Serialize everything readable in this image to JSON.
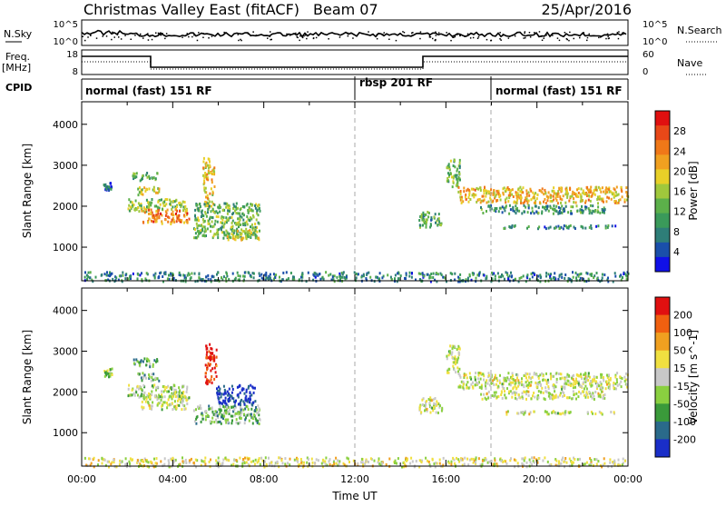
{
  "header": {
    "title": "Christmas Valley East (fitACF)",
    "beam": "Beam 07",
    "date": "25/Apr/2016"
  },
  "top_panels": {
    "nsky": {
      "label_left": "N.Sky",
      "ticks_left": [
        "10^5",
        "10^0"
      ],
      "label_right": "N.Search",
      "ticks_right": [
        "10^5",
        "10^0"
      ]
    },
    "freq": {
      "label_left": "Freq.",
      "unit_left": "[MHz]",
      "ticks_left": [
        "18",
        "8"
      ],
      "label_right": "Nave",
      "ticks_right": [
        "60",
        "0"
      ]
    },
    "cpid": {
      "label": "CPID",
      "segments": [
        {
          "label": "normal (fast) 151 RF",
          "start_hour": 0,
          "end_hour": 12
        },
        {
          "label": "rbsp 201 RF",
          "start_hour": 12,
          "end_hour": 18
        },
        {
          "label": "normal (fast) 151 RF",
          "start_hour": 18,
          "end_hour": 24
        }
      ]
    }
  },
  "chart_data": [
    {
      "type": "heatmap",
      "name": "power",
      "ylabel": "Slant Range [km]",
      "yticks": [
        "1000",
        "2000",
        "3000",
        "4000"
      ],
      "ylim": [
        180,
        4550
      ],
      "xlim": [
        0,
        24
      ],
      "colorbar": {
        "label": "Power [dB]",
        "ticks": [
          "4",
          "8",
          "12",
          "16",
          "20",
          "24",
          "28"
        ],
        "colors": [
          "#1010e8",
          "#1a4faa",
          "#2e7e78",
          "#3a9a5a",
          "#5cb04a",
          "#a0c83c",
          "#e8d028",
          "#f0a020",
          "#f07818",
          "#e84818",
          "#e01010"
        ]
      },
      "regions": [
        {
          "t0": 0.9,
          "t1": 1.3,
          "r0": 2400,
          "r1": 2600,
          "level": 0.2
        },
        {
          "t0": 2.2,
          "t1": 3.3,
          "r0": 2650,
          "r1": 2850,
          "level": 0.35
        },
        {
          "t0": 2.4,
          "t1": 3.4,
          "r0": 2300,
          "r1": 2500,
          "level": 0.55
        },
        {
          "t0": 2.0,
          "t1": 4.6,
          "r0": 1900,
          "r1": 2200,
          "level": 0.45
        },
        {
          "t0": 2.6,
          "t1": 4.7,
          "r0": 1600,
          "r1": 1950,
          "level": 0.75
        },
        {
          "t0": 5.3,
          "t1": 5.8,
          "r0": 2000,
          "r1": 3200,
          "level": 0.6
        },
        {
          "t0": 4.9,
          "t1": 7.8,
          "r0": 1250,
          "r1": 2100,
          "level": 0.4
        },
        {
          "t0": 6.3,
          "t1": 7.8,
          "r0": 1200,
          "r1": 1450,
          "level": 0.55
        },
        {
          "t0": 16.0,
          "t1": 16.6,
          "r0": 2500,
          "r1": 3200,
          "level": 0.4
        },
        {
          "t0": 16.5,
          "t1": 24.0,
          "r0": 2100,
          "r1": 2500,
          "level": 0.65
        },
        {
          "t0": 17.5,
          "t1": 23.0,
          "r0": 1850,
          "r1": 2050,
          "level": 0.3
        },
        {
          "t0": 18.5,
          "t1": 23.5,
          "r0": 1480,
          "r1": 1560,
          "level": 0.25
        },
        {
          "t0": 14.8,
          "t1": 15.8,
          "r0": 1500,
          "r1": 1900,
          "level": 0.35
        },
        {
          "t0": 0.0,
          "t1": 24.0,
          "r0": 190,
          "r1": 420,
          "level": 0.25
        }
      ]
    },
    {
      "type": "heatmap",
      "name": "velocity",
      "ylabel": "Slant Range [km]",
      "yticks": [
        "1000",
        "2000",
        "3000",
        "4000"
      ],
      "ylim": [
        180,
        4550
      ],
      "xlim": [
        0,
        24
      ],
      "xticks": [
        "00:00",
        "04:00",
        "08:00",
        "12:00",
        "16:00",
        "20:00",
        "00:00"
      ],
      "xlabel": "Time UT",
      "colorbar": {
        "label": "Velocity [m s^-1]",
        "ticks": [
          "200",
          "100",
          "50",
          "15",
          "-15",
          "-50",
          "-100",
          "-200"
        ],
        "colors": [
          "#1a2ec8",
          "#2a6a8a",
          "#3a9a3a",
          "#8ad040",
          "#c8c8c8",
          "#f0e040",
          "#f0a020",
          "#f06010",
          "#e01010"
        ]
      },
      "regions": [
        {
          "t0": 0.9,
          "t1": 1.3,
          "r0": 2400,
          "r1": 2600,
          "level": 0.45
        },
        {
          "t0": 2.2,
          "t1": 3.3,
          "r0": 2650,
          "r1": 2850,
          "level": 0.3
        },
        {
          "t0": 2.4,
          "t1": 3.4,
          "r0": 2300,
          "r1": 2500,
          "level": 0.35
        },
        {
          "t0": 2.0,
          "t1": 4.6,
          "r0": 1900,
          "r1": 2200,
          "level": 0.45
        },
        {
          "t0": 2.6,
          "t1": 4.7,
          "r0": 1600,
          "r1": 1950,
          "level": 0.5
        },
        {
          "t0": 5.4,
          "t1": 5.9,
          "r0": 2200,
          "r1": 3200,
          "level": 0.95
        },
        {
          "t0": 5.9,
          "t1": 7.6,
          "r0": 1700,
          "r1": 2200,
          "level": 0.05
        },
        {
          "t0": 4.9,
          "t1": 7.8,
          "r0": 1250,
          "r1": 1700,
          "level": 0.35
        },
        {
          "t0": 16.0,
          "t1": 16.6,
          "r0": 2500,
          "r1": 3200,
          "level": 0.5
        },
        {
          "t0": 16.5,
          "t1": 24.0,
          "r0": 2100,
          "r1": 2500,
          "level": 0.5
        },
        {
          "t0": 17.5,
          "t1": 23.0,
          "r0": 1850,
          "r1": 2050,
          "level": 0.5
        },
        {
          "t0": 18.5,
          "t1": 23.5,
          "r0": 1480,
          "r1": 1560,
          "level": 0.5
        },
        {
          "t0": 14.8,
          "t1": 15.8,
          "r0": 1500,
          "r1": 1900,
          "level": 0.5
        },
        {
          "t0": 0.0,
          "t1": 24.0,
          "r0": 190,
          "r1": 420,
          "level": 0.55
        }
      ]
    }
  ]
}
